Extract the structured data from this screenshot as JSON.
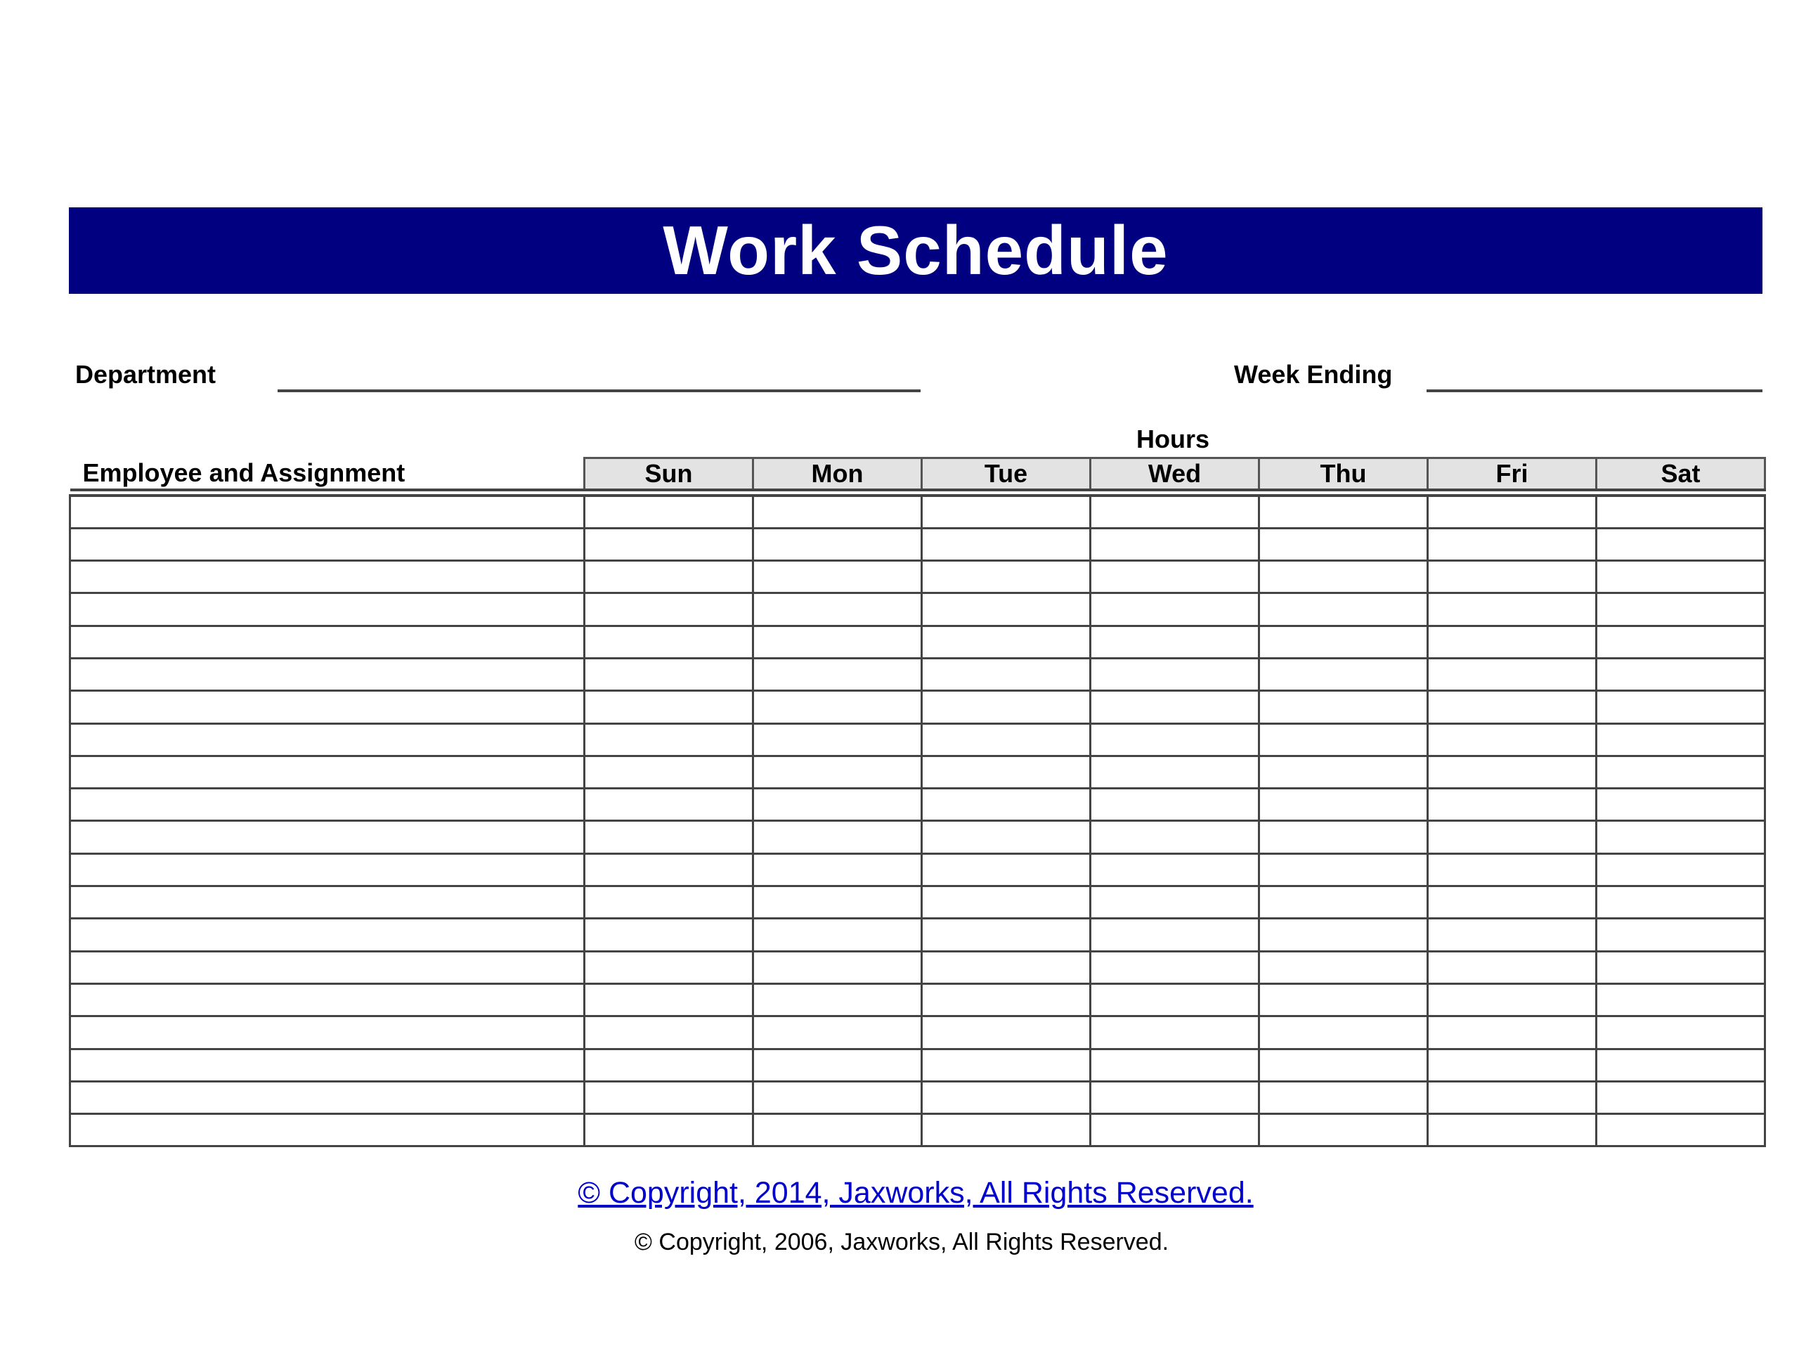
{
  "title": "Work Schedule",
  "header_color": "#000080",
  "fields": {
    "department_label": "Department",
    "department_value": "",
    "week_ending_label": "Week Ending",
    "week_ending_value": ""
  },
  "table": {
    "group_header": "Hours",
    "employee_header": "Employee and Assignment",
    "days": [
      "Sun",
      "Mon",
      "Tue",
      "Wed",
      "Thu",
      "Fri",
      "Sat"
    ],
    "row_count": 20
  },
  "footer": {
    "copyright_link": "© Copyright, 2014, Jaxworks, All Rights Reserved.",
    "copyright_text": "© Copyright, 2006, Jaxworks, All Rights Reserved.",
    "link_color": "#0000cc"
  }
}
